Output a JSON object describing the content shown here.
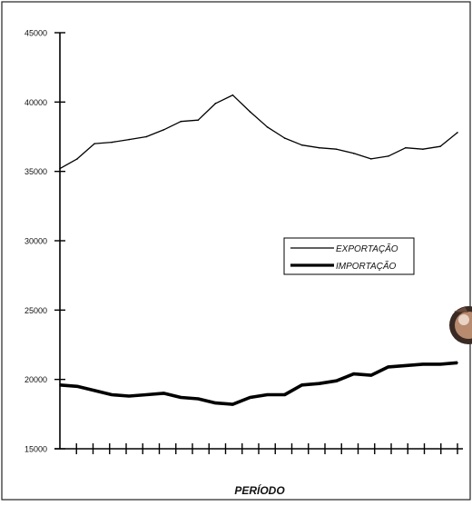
{
  "chart_data": {
    "type": "line",
    "title": "",
    "xlabel": "PERÍODO",
    "ylabel": "",
    "ylim": [
      15000,
      45000
    ],
    "y_ticks": [
      "45000",
      "40000",
      "35000",
      "30000",
      "25000",
      "20000",
      "15000"
    ],
    "x_ticks_count": 24,
    "grid": false,
    "legend_position": "right-middle",
    "series": [
      {
        "name": "EXPORTAÇÃO",
        "color": "#000000",
        "style": "thin",
        "values": [
          35200,
          35900,
          37000,
          37100,
          37300,
          37500,
          38000,
          38600,
          38700,
          39900,
          40500,
          39300,
          38200,
          37400,
          36900,
          36700,
          36600,
          36300,
          35900,
          36100,
          36700,
          36600,
          36800,
          37800
        ]
      },
      {
        "name": "IMPORTAÇÃO",
        "color": "#000000",
        "style": "thick",
        "values": [
          19600,
          19500,
          19200,
          18900,
          18800,
          18900,
          19000,
          18700,
          18600,
          18300,
          18200,
          18700,
          18900,
          18900,
          19600,
          19700,
          19900,
          20400,
          20300,
          20900,
          21000,
          21100,
          21100,
          21200
        ]
      }
    ]
  },
  "decor": {
    "icon": "disc-sticker-icon"
  }
}
